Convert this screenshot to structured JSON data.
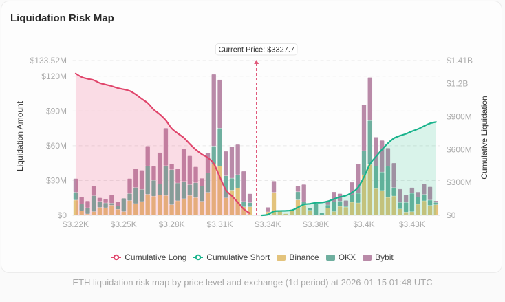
{
  "card": {
    "title": "Liquidation Risk Map"
  },
  "caption": "ETH liquidation risk map by price level and exchange (1d period) at 2026-01-15 01:48 UTC",
  "chart_data": {
    "type": "bar",
    "title": "Liquidation Risk Map",
    "subtitle": "",
    "xlabel": "",
    "x_ticks": {
      "category_indices": [
        0,
        8,
        16,
        24,
        32,
        40,
        48,
        56
      ],
      "labels": [
        "$3.22K",
        "$3.25K",
        "$3.28K",
        "$3.31K",
        "$3.34K",
        "$3.38K",
        "$3.4K",
        "$3.43K"
      ]
    },
    "y_left": {
      "label": "Liquidation Amount",
      "unit": "USD millions",
      "min": 0,
      "max": 133.52,
      "ticks": [
        0,
        30,
        60,
        90,
        120,
        133.52
      ],
      "tick_labels": [
        "$0",
        "$30M",
        "$60M",
        "$90M",
        "$120M",
        "$133.52M"
      ]
    },
    "y_right": {
      "label": "Cumulative Liquidation",
      "unit": "USD millions",
      "min": 0,
      "max": 1410,
      "ticks": [
        0,
        300,
        600,
        900,
        1200,
        1410
      ],
      "tick_labels": [
        "$0",
        "$300M",
        "$600M",
        "$900M",
        "$1.2B",
        "$1.41B"
      ]
    },
    "grid": true,
    "legend": {
      "position": "bottom"
    },
    "current_price": {
      "label": "Current Price: $3327.7",
      "value": 3327.7,
      "category_index": 30,
      "color": "#e0587a"
    },
    "series": [
      {
        "name": "Cumulative Long",
        "type": "line",
        "axis": "right",
        "color": "#e0456b",
        "area_color": "#ec4878",
        "values": [
          1291.4,
          1259.7,
          1243.8,
          1231.4,
          1206.0,
          1190.9,
          1177.0,
          1159.5,
          1147.9,
          1133.2,
          1101.5,
          1061.3,
          1022.4,
          962.7,
          920.4,
          866.3,
          791.1,
          746.8,
          706.8,
          649.7,
          598.4,
          556.6,
          524.7,
          470.9,
          349.2,
          232.2,
          177.0,
          117.7,
          56.6,
          18.6,
          null,
          null,
          null,
          null,
          null,
          null,
          null,
          null,
          null,
          null,
          null,
          null,
          null,
          null,
          null,
          null,
          null,
          null,
          null,
          null,
          null,
          null,
          null,
          null,
          null,
          null,
          null,
          null,
          null,
          null,
          null
        ]
      },
      {
        "name": "Cumulative Short",
        "type": "line",
        "axis": "right",
        "color": "#19b38c",
        "area_color": "#10b981",
        "values": [
          null,
          null,
          null,
          null,
          null,
          null,
          null,
          null,
          null,
          null,
          null,
          null,
          null,
          null,
          null,
          null,
          null,
          null,
          null,
          null,
          null,
          null,
          null,
          null,
          null,
          null,
          null,
          null,
          null,
          null,
          null,
          0,
          6.9,
          36.4,
          40.3,
          41.7,
          46.6,
          71.8,
          98.4,
          104.7,
          114.4,
          116.4,
          128.0,
          148.2,
          166.9,
          179.7,
          208.2,
          252.6,
          348.1,
          467.1,
          534.5,
          599.1,
          657.1,
          702.2,
          724.8,
          742.4,
          766.3,
          786.4,
          813.3,
          837.9,
          850.4
        ]
      },
      {
        "name": "Binance",
        "type": "bar",
        "stack": "exchanges",
        "axis": "left",
        "color": "#e3c37c",
        "values": [
          13.1,
          4.0,
          1.2,
          3.2,
          6.8,
          6.5,
          8.7,
          5.2,
          3.2,
          12.7,
          10.1,
          11.9,
          18.1,
          16.5,
          17.5,
          17.0,
          9.1,
          12.5,
          14.3,
          17.0,
          15.2,
          12.1,
          19.8,
          44.3,
          42.5,
          15.0,
          21.7,
          23.5,
          7.3,
          7.3,
          0,
          0,
          3.0,
          19.8,
          3.9,
          1.4,
          4.9,
          13.3,
          8.9,
          4.4,
          0,
          0,
          6.3,
          3.3,
          7.7,
          7.1,
          11.3,
          10.7,
          34.9,
          43.8,
          23.0,
          21.4,
          15.4,
          16.6,
          5.5,
          2.8,
          3.1,
          9.5,
          12.5,
          8.5,
          9.1
        ]
      },
      {
        "name": "OKX",
        "type": "bar",
        "stack": "exchanges",
        "axis": "left",
        "color": "#6faf9f",
        "values": [
          6.8,
          5.8,
          5.3,
          13.7,
          5.3,
          4.2,
          1.8,
          2.8,
          11.5,
          6.1,
          13.9,
          10.5,
          24.5,
          13.7,
          9.5,
          25.8,
          30.3,
          15.4,
          14.9,
          9.5,
          12.9,
          13.1,
          16.8,
          15.4,
          32.7,
          19.0,
          10.3,
          11.5,
          4.6,
          3.6,
          0,
          0,
          0,
          0,
          0,
          0,
          0,
          7.0,
          2.8,
          1.9,
          9.7,
          2.0,
          2.6,
          8.3,
          4.5,
          0.6,
          6.3,
          8.3,
          20.8,
          38.0,
          19.4,
          15.9,
          26.9,
          7.3,
          5.6,
          8.3,
          15.9,
          6.4,
          5.5,
          4.6,
          2.0
        ]
      },
      {
        "name": "Bybit",
        "type": "bar",
        "stack": "exchanges",
        "axis": "left",
        "color": "#b98aa8",
        "values": [
          11.8,
          6.1,
          5.9,
          8.5,
          3.0,
          3.2,
          7.0,
          3.6,
          0,
          12.9,
          16.2,
          16.5,
          17.1,
          12.1,
          27.1,
          32.4,
          4.9,
          12.1,
          27.9,
          24.8,
          13.7,
          6.7,
          17.2,
          62.0,
          41.8,
          21.2,
          27.3,
          26.1,
          26.1,
          7.7,
          0,
          0,
          3.9,
          9.7,
          0,
          0,
          0,
          4.9,
          14.9,
          0,
          0,
          0,
          2.7,
          8.6,
          6.5,
          5.1,
          10.9,
          25.4,
          39.8,
          37.2,
          25.0,
          27.3,
          15.7,
          21.2,
          11.5,
          6.5,
          4.9,
          4.2,
          8.9,
          11.5,
          1.4
        ]
      }
    ]
  }
}
